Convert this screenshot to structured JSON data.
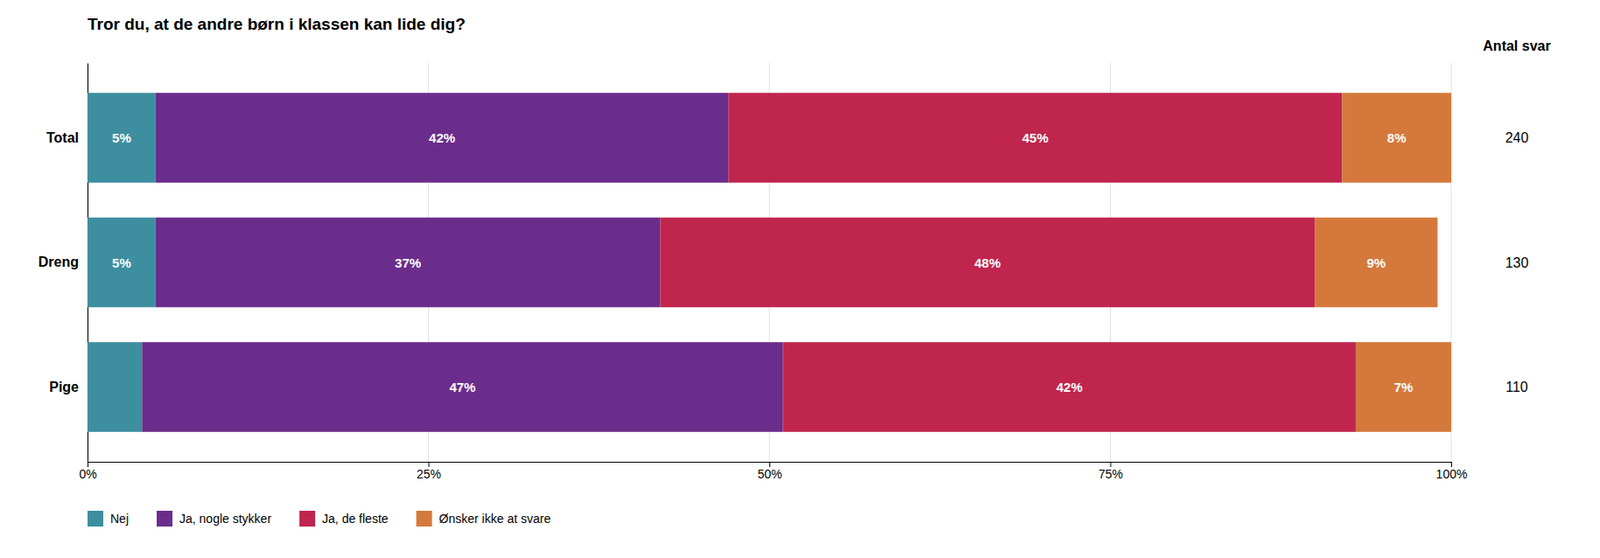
{
  "chart_data": {
    "type": "bar",
    "orientation": "horizontal",
    "stacked": true,
    "title": "Tror du, at de andre børn i klassen kan lide dig?",
    "categories": [
      "Total",
      "Dreng",
      "Pige"
    ],
    "series": [
      {
        "name": "Nej",
        "color": "#3d8fa0",
        "values": [
          5,
          5,
          4
        ],
        "value_labels": [
          "5%",
          "5%",
          null
        ]
      },
      {
        "name": "Ja, nogle stykker",
        "color": "#6b2d8b",
        "values": [
          42,
          37,
          47
        ],
        "value_labels": [
          "42%",
          "37%",
          "47%"
        ]
      },
      {
        "name": "Ja, de fleste",
        "color": "#c0254e",
        "values": [
          45,
          48,
          42
        ],
        "value_labels": [
          "45%",
          "48%",
          "42%"
        ]
      },
      {
        "name": "Ønsker ikke at svare",
        "color": "#d4793b",
        "values": [
          8,
          9,
          7
        ],
        "value_labels": [
          "8%",
          "9%",
          "7%"
        ]
      }
    ],
    "xlim": [
      0,
      100
    ],
    "xticks": [
      {
        "value": 0,
        "label": "0%"
      },
      {
        "value": 25,
        "label": "25%"
      },
      {
        "value": 50,
        "label": "50%"
      },
      {
        "value": 75,
        "label": "75%"
      },
      {
        "value": 100,
        "label": "100%"
      }
    ],
    "grid": true,
    "data_labels": true,
    "legend": "bottom",
    "count_title": "Antal svar",
    "counts": [
      240,
      130,
      110
    ]
  }
}
